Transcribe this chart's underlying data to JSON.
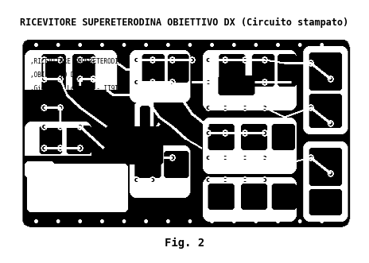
{
  "title": "RICEVITORE SUPERETERODINA OBIETTIVO DX (Circuito stampato)",
  "caption": "Fig. 2",
  "fig_bg": "#ffffff",
  "pcb_bg": "#000000",
  "trace_color": "#ffffff",
  "label_lines": [
    ",RICEVITORE SUPERETERODINA",
    ",OBIETTIVO DX",
    ",Giovanni Lorenzi - IT9TZZ"
  ],
  "title_fontsize": 8.5,
  "caption_fontsize": 10
}
